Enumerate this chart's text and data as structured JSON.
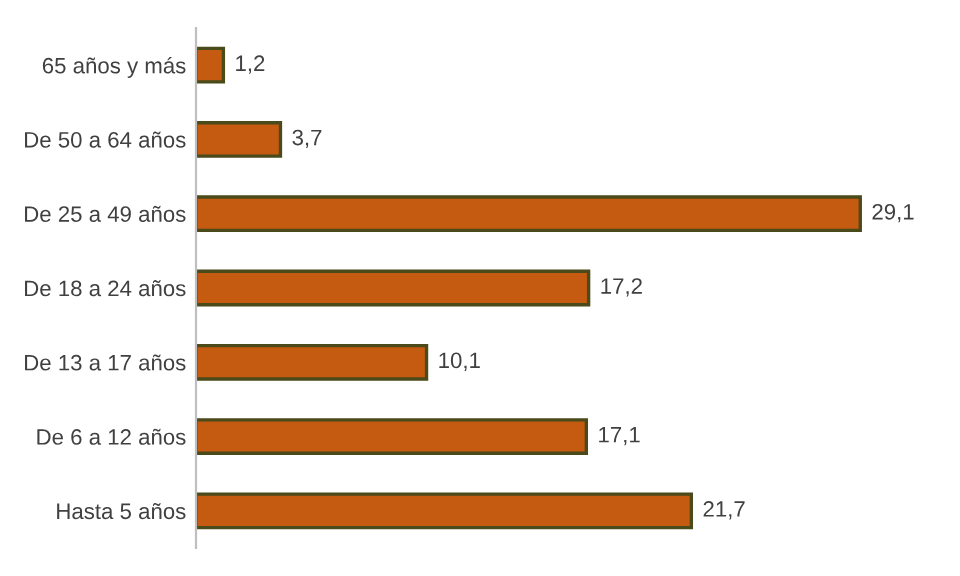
{
  "chart_data": {
    "type": "bar",
    "orientation": "horizontal",
    "categories": [
      "65 años y más",
      "De 50 a 64 años",
      "De 25 a 49 años",
      "De 18 a 24 años",
      "De 13 a 17 años",
      "De 6 a 12 años",
      "Hasta 5 años"
    ],
    "values": [
      1.2,
      3.7,
      29.1,
      17.2,
      10.1,
      17.1,
      21.7
    ],
    "value_labels": [
      "1,2",
      "3,7",
      "29,1",
      "17,2",
      "10,1",
      "17,1",
      "21,7"
    ],
    "color": "#c55a11",
    "grid": false,
    "legend": false,
    "tick_labels": "y"
  }
}
